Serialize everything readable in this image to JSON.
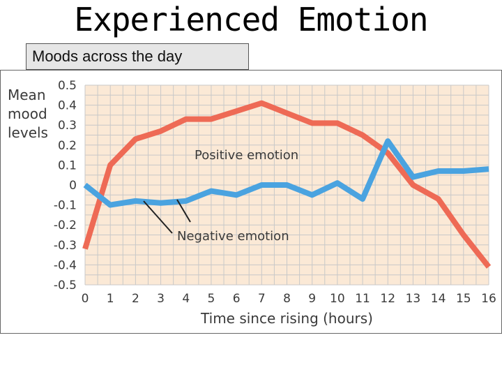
{
  "slide": {
    "title": "Experienced Emotion",
    "subtitle": "Moods across the day"
  },
  "chart_data": {
    "type": "line",
    "title": "",
    "ylabel_lines": [
      "Mean",
      "mood",
      "levels"
    ],
    "xlabel": "Time since rising (hours)",
    "xlim": [
      0,
      16
    ],
    "ylim": [
      -0.5,
      0.5
    ],
    "x_ticks": [
      "0",
      "1",
      "2",
      "3",
      "4",
      "5",
      "6",
      "7",
      "8",
      "9",
      "10",
      "11",
      "12",
      "13",
      "14",
      "15",
      "16"
    ],
    "y_ticks": [
      "0.5",
      "0.4",
      "0.3",
      "0.2",
      "0.1",
      "0",
      "-0.1",
      "-0.2",
      "-0.3",
      "-0.4",
      "-0.5"
    ],
    "grid": true,
    "background_color": "#fbe9d6",
    "grid_color": "#c8c8c8",
    "series": [
      {
        "name": "Positive emotion",
        "color": "#ee6a55",
        "x": [
          0,
          1,
          2,
          3,
          4,
          5,
          6,
          7,
          8,
          9,
          10,
          11,
          12,
          13,
          14,
          15,
          16
        ],
        "y": [
          -0.32,
          0.1,
          0.23,
          0.27,
          0.33,
          0.33,
          0.37,
          0.41,
          0.36,
          0.31,
          0.31,
          0.25,
          0.16,
          0.0,
          -0.07,
          -0.25,
          -0.41
        ]
      },
      {
        "name": "Negative emotion",
        "color": "#4aa3e0",
        "x": [
          0,
          1,
          2,
          3,
          4,
          5,
          6,
          7,
          8,
          9,
          10,
          11,
          12,
          13,
          14,
          15,
          16
        ],
        "y": [
          0.0,
          -0.1,
          -0.08,
          -0.09,
          -0.08,
          -0.03,
          -0.05,
          0.0,
          0.0,
          -0.05,
          0.01,
          -0.07,
          0.22,
          0.04,
          0.07,
          0.07,
          0.08
        ]
      }
    ],
    "annotations": [
      {
        "text": "Positive emotion",
        "series": "Positive emotion",
        "at_x": 4
      },
      {
        "text": "Negative emotion",
        "series": "Negative emotion",
        "at_x": 2.4
      }
    ]
  }
}
